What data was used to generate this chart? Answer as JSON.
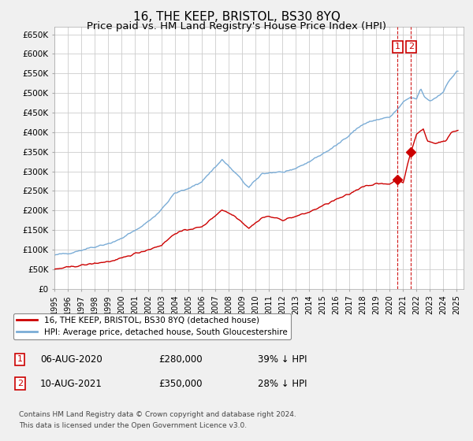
{
  "title": "16, THE KEEP, BRISTOL, BS30 8YQ",
  "subtitle": "Price paid vs. HM Land Registry's House Price Index (HPI)",
  "title_fontsize": 11,
  "subtitle_fontsize": 9.5,
  "ylim": [
    0,
    670000
  ],
  "yticks": [
    0,
    50000,
    100000,
    150000,
    200000,
    250000,
    300000,
    350000,
    400000,
    450000,
    500000,
    550000,
    600000,
    650000
  ],
  "ytick_labels": [
    "£0",
    "£50K",
    "£100K",
    "£150K",
    "£200K",
    "£250K",
    "£300K",
    "£350K",
    "£400K",
    "£450K",
    "£500K",
    "£550K",
    "£600K",
    "£650K"
  ],
  "hpi_color": "#7aacd6",
  "price_color": "#cc0000",
  "vline_color": "#cc0000",
  "marker_color": "#cc0000",
  "annotation_box_color": "#cc0000",
  "legend_label_price": "16, THE KEEP, BRISTOL, BS30 8YQ (detached house)",
  "legend_label_hpi": "HPI: Average price, detached house, South Gloucestershire",
  "sale1_date_str": "06-AUG-2020",
  "sale1_price": 280000,
  "sale1_x": 2020.58,
  "sale2_date_str": "10-AUG-2021",
  "sale2_price": 350000,
  "sale2_x": 2021.58,
  "sale1_label": "1",
  "sale2_label": "2",
  "sale1_pct": "39% ↓ HPI",
  "sale2_pct": "28% ↓ HPI",
  "footnote1": "Contains HM Land Registry data © Crown copyright and database right 2024.",
  "footnote2": "This data is licensed under the Open Government Licence v3.0.",
  "background_color": "#f0f0f0",
  "plot_bg_color": "#ffffff",
  "grid_color": "#cccccc"
}
